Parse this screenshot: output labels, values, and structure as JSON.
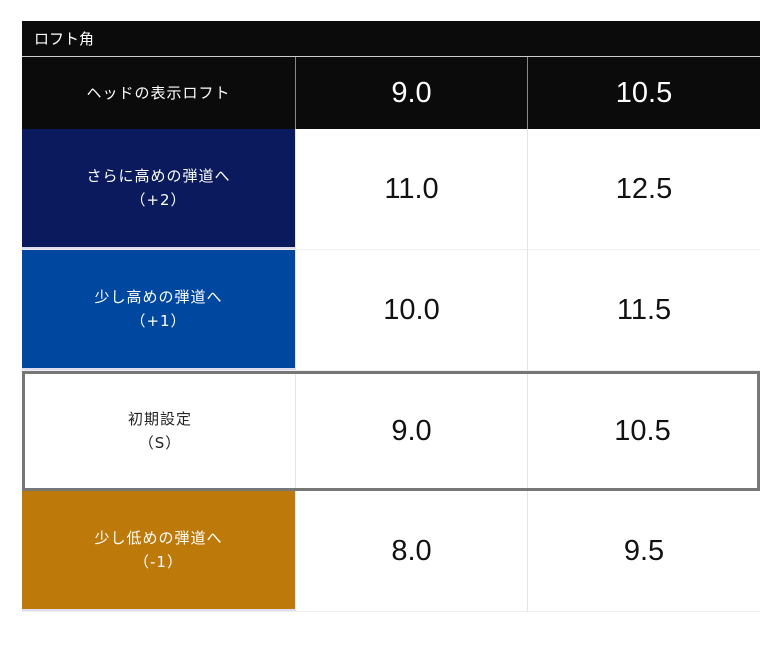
{
  "table": {
    "title": "ロフト角",
    "header": {
      "label": "ヘッドの表示ロフト",
      "values": [
        "9.0",
        "10.5"
      ]
    },
    "rows": [
      {
        "label": "さらに高めの弾道へ",
        "code": "（+2）",
        "values": [
          "11.0",
          "12.5"
        ],
        "color": "#0a1a5c"
      },
      {
        "label": "少し高めの弾道へ",
        "code": "（+1）",
        "values": [
          "10.0",
          "11.5"
        ],
        "color": "#0047a0"
      },
      {
        "label": "初期設定",
        "code": "（S）",
        "values": [
          "9.0",
          "10.5"
        ],
        "color": "#ffffff"
      },
      {
        "label": "少し低めの弾道へ",
        "code": "（-1）",
        "values": [
          "8.0",
          "9.5"
        ],
        "color": "#bd7a0a"
      }
    ]
  }
}
